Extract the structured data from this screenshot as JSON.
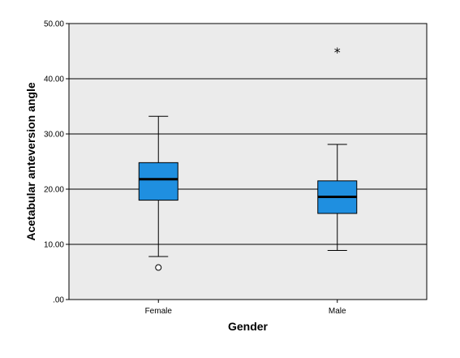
{
  "chart_data": {
    "type": "boxplot",
    "xlabel": "Gender",
    "ylabel": "Acetabular anteversion angle",
    "ylim": [
      0,
      50
    ],
    "yticks": [
      {
        "value": 0,
        "label": ".00"
      },
      {
        "value": 10,
        "label": "10.00"
      },
      {
        "value": 20,
        "label": "20.00"
      },
      {
        "value": 30,
        "label": "30.00"
      },
      {
        "value": 40,
        "label": "40.00"
      },
      {
        "value": 50,
        "label": "50.00"
      }
    ],
    "grid": "horizontal",
    "background_color": "#ebebeb",
    "box_color": "#1f8fe0",
    "categories": [
      "Female",
      "Male"
    ],
    "boxes": [
      {
        "category": "Female",
        "whisker_low": 7.8,
        "q1": 18.0,
        "median": 21.8,
        "q3": 24.8,
        "whisker_high": 33.2,
        "outliers": [
          {
            "value": 5.8,
            "marker": "circle"
          }
        ]
      },
      {
        "category": "Male",
        "whisker_low": 8.9,
        "q1": 15.6,
        "median": 18.6,
        "q3": 21.5,
        "whisker_high": 28.1,
        "outliers": [
          {
            "value": 45.0,
            "marker": "star"
          }
        ]
      }
    ]
  }
}
